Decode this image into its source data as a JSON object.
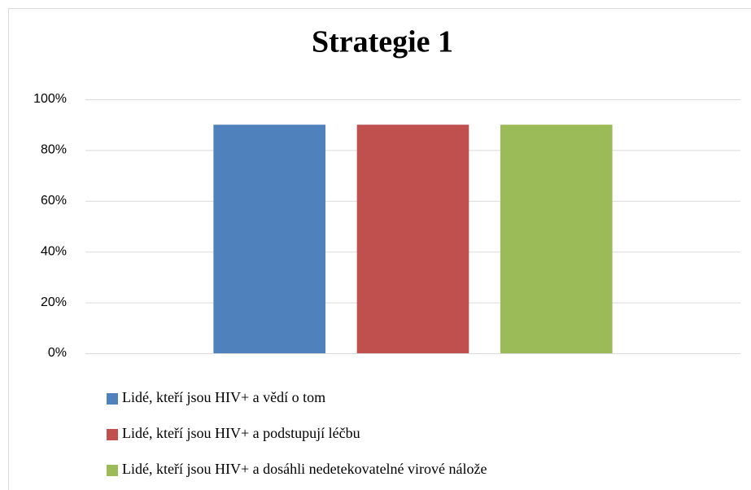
{
  "chart_data": {
    "type": "bar",
    "title": "Strategie 1",
    "categories": [
      null
    ],
    "series": [
      {
        "name": "Lidé, kteří jsou HIV+ a vědí o tom",
        "color": "#4f81bd",
        "values": [
          90
        ]
      },
      {
        "name": "Lidé, kteří jsou HIV+ a podstupují léčbu",
        "color": "#c0504d",
        "values": [
          90
        ]
      },
      {
        "name": "Lidé, kteří jsou HIV+ a dosáhli nedetekovatelné virové nálože",
        "color": "#9bbb59",
        "values": [
          90
        ]
      }
    ],
    "ylim": [
      0,
      100
    ],
    "yticks": [
      {
        "value": 0,
        "label": "0%"
      },
      {
        "value": 20,
        "label": "20%"
      },
      {
        "value": 40,
        "label": "40%"
      },
      {
        "value": 60,
        "label": "60%"
      },
      {
        "value": 80,
        "label": "80%"
      },
      {
        "value": 100,
        "label": "100%"
      }
    ],
    "grid": true,
    "legend": "bottom"
  }
}
